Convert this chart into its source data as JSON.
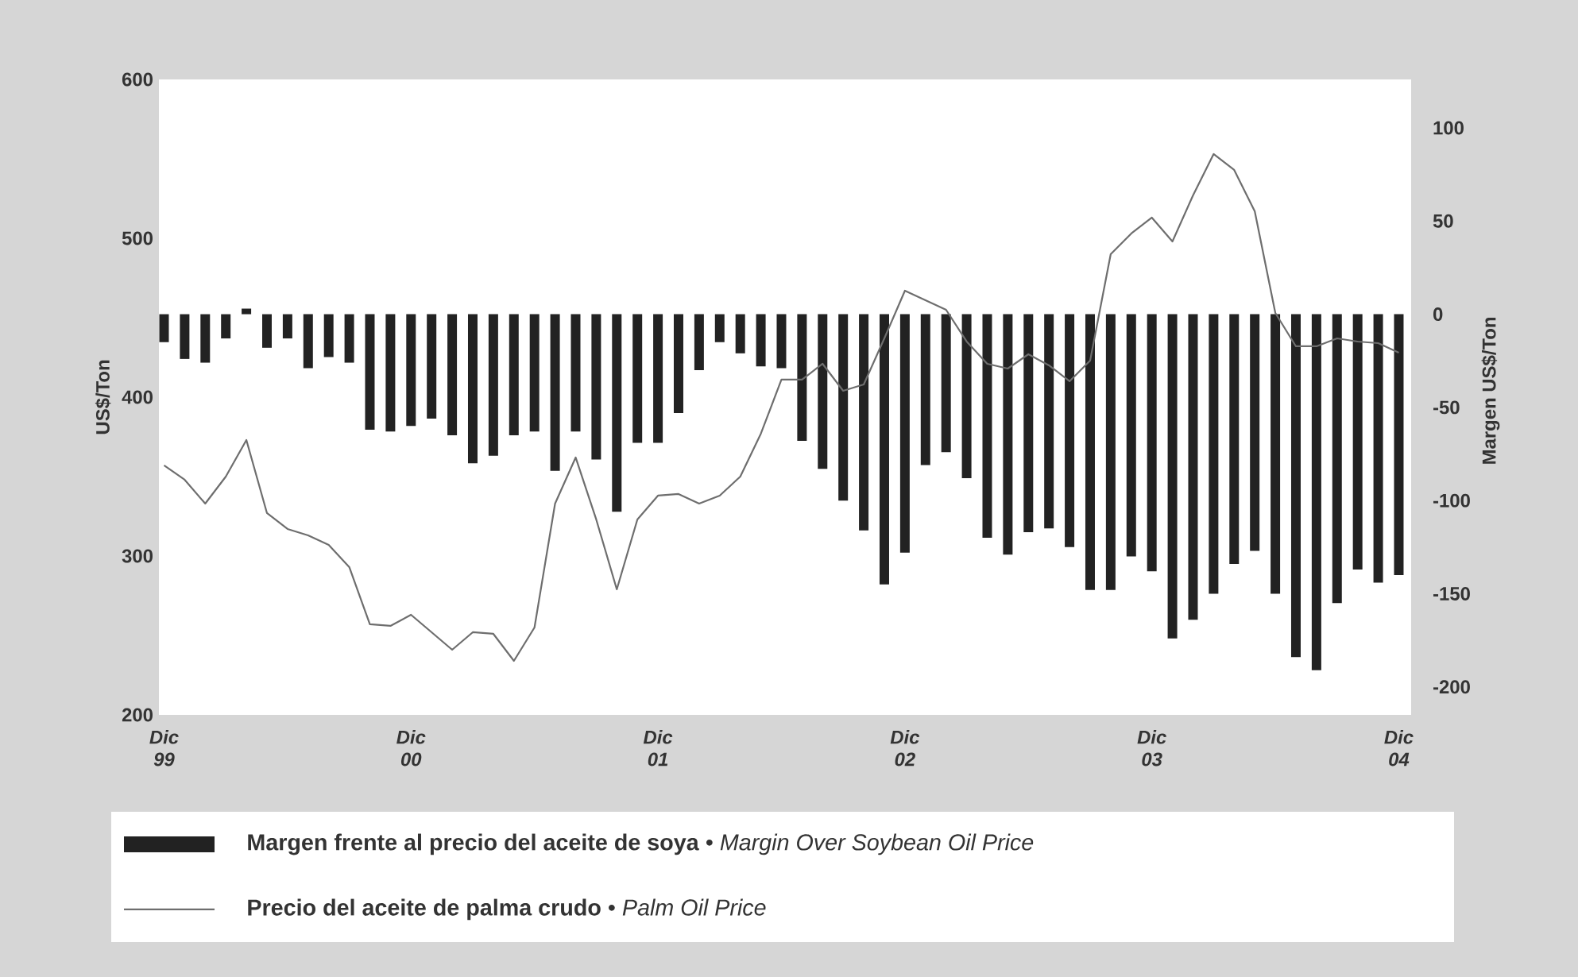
{
  "chart_data": {
    "type": "bar",
    "ylabel": "US$/Ton",
    "y2label": "Margen US$/Ton",
    "categories": [
      "Dic 99",
      null,
      null,
      null,
      null,
      null,
      null,
      null,
      null,
      null,
      null,
      null,
      "Dic 00",
      null,
      null,
      null,
      null,
      null,
      null,
      null,
      null,
      null,
      null,
      null,
      "Dic 01",
      null,
      null,
      null,
      null,
      null,
      null,
      null,
      null,
      null,
      null,
      null,
      "Dic 02",
      null,
      null,
      null,
      null,
      null,
      null,
      null,
      null,
      null,
      null,
      null,
      "Dic 03",
      null,
      null,
      null,
      null,
      null,
      null,
      null,
      null,
      null,
      null,
      null,
      "Dic 04"
    ],
    "series": [
      {
        "name": "**Margen frente al precio del aceite de soya** • *Margin Over Soybean Oil Price*",
        "axis": "y2",
        "color": "#222222",
        "values": [
          -15,
          -24,
          -26,
          -13,
          3,
          -18,
          -13,
          -29,
          -23,
          -26,
          -62,
          -63,
          -60,
          -56,
          -65,
          -80,
          -76,
          -65,
          -63,
          -84,
          -63,
          -78,
          -106,
          -69,
          -69,
          -53,
          -30,
          -15,
          -21,
          -28,
          -29,
          -68,
          -83,
          -100,
          -116,
          -145,
          -128,
          -81,
          -74,
          -88,
          -120,
          -129,
          -117,
          -115,
          -125,
          -148,
          -148,
          -130,
          -138,
          -174,
          -164,
          -150,
          -134,
          -127,
          -150,
          -184,
          -191,
          -155,
          -137,
          -144,
          -140
        ]
      },
      {
        "name": "**Precio del aceite de palma crudo** • *Palm Oil Price*",
        "type": "line",
        "color": "#6e6e6e",
        "values": [
          357,
          348,
          333,
          350,
          373,
          327,
          317,
          313,
          307,
          293,
          257,
          256,
          263,
          252,
          241,
          252,
          251,
          234,
          255,
          333,
          362,
          323,
          279,
          323,
          338,
          339,
          333,
          338,
          350,
          377,
          411,
          411,
          421,
          404,
          408,
          437,
          467,
          461,
          455,
          435,
          421,
          418,
          427,
          420,
          410,
          423,
          490,
          503,
          513,
          498,
          527,
          553,
          543,
          517,
          453,
          432,
          432,
          437,
          435,
          434,
          428
        ]
      }
    ],
    "ylim": [
      200,
      600
    ],
    "yticks": [
      200,
      300,
      400,
      500,
      600
    ],
    "y2lim": [
      -215,
      126
    ],
    "y2ticks": [
      -200,
      -150,
      -100,
      -50,
      0,
      50,
      100
    ],
    "legend": "bottom"
  }
}
